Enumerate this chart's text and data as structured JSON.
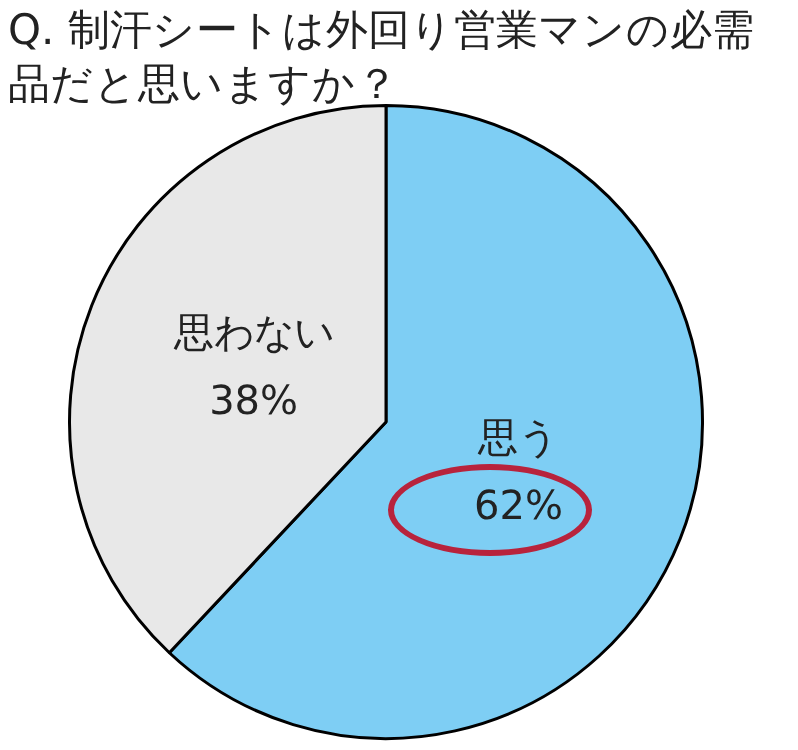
{
  "chart_data": {
    "type": "pie",
    "title": "Q. 制汗シートは外回り営業マンの必需品だと思いますか？",
    "categories": [
      "思う",
      "思わない"
    ],
    "values": [
      62,
      38
    ],
    "value_labels": [
      "62%",
      "38%"
    ],
    "colors": [
      "#7ecef4",
      "#e8e8e8"
    ],
    "legend": false
  }
}
